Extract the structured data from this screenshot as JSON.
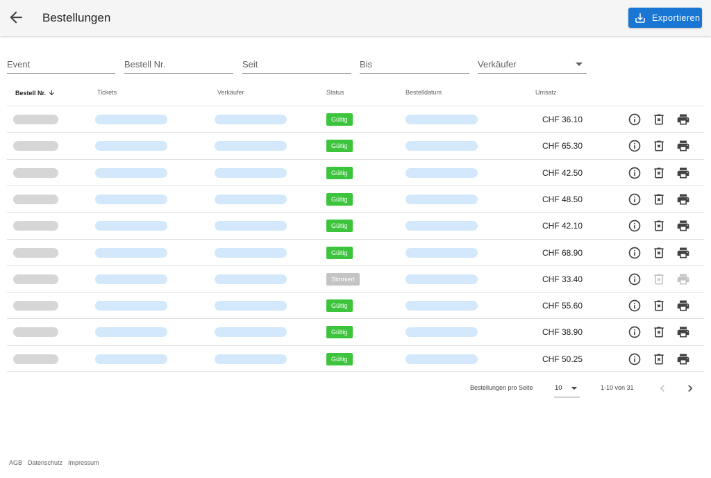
{
  "header": {
    "title": "Bestellungen",
    "export_label": "Exportieren"
  },
  "filters": [
    {
      "placeholder": "Event"
    },
    {
      "placeholder": "Bestell Nr."
    },
    {
      "placeholder": "Seit"
    },
    {
      "placeholder": "Bis"
    },
    {
      "placeholder": "Verkäufer",
      "dropdown": true
    }
  ],
  "table": {
    "columns": [
      "Bestell Nr.",
      "Tickets",
      "Verkäufer",
      "Status",
      "Bestelldatum",
      "Umsatz"
    ],
    "sorted_column": "Bestell Nr.",
    "rows": [
      {
        "status": "Gültig",
        "amount": "CHF 36.10",
        "actions_enabled": true
      },
      {
        "status": "Gültig",
        "amount": "CHF 65.30",
        "actions_enabled": true
      },
      {
        "status": "Gültig",
        "amount": "CHF 42.50",
        "actions_enabled": true
      },
      {
        "status": "Gültig",
        "amount": "CHF 48.50",
        "actions_enabled": true
      },
      {
        "status": "Gültig",
        "amount": "CHF 42.10",
        "actions_enabled": true
      },
      {
        "status": "Gültig",
        "amount": "CHF 68.90",
        "actions_enabled": true
      },
      {
        "status": "Storniert",
        "amount": "CHF 33.40",
        "actions_enabled": false
      },
      {
        "status": "Gültig",
        "amount": "CHF 55.60",
        "actions_enabled": true
      },
      {
        "status": "Gültig",
        "amount": "CHF 38.90",
        "actions_enabled": true
      },
      {
        "status": "Gültig",
        "amount": "CHF 50.25",
        "actions_enabled": true
      }
    ],
    "row_actions": [
      "info-icon",
      "delete-icon",
      "print-icon"
    ]
  },
  "pagination": {
    "rows_per_page_label": "Bestellungen pro Seite",
    "rows_per_page_value": "10",
    "range_label": "1-10 von 31"
  },
  "footer": {
    "links": [
      "AGB",
      "Datenschutz",
      "Impressum"
    ]
  },
  "colors": {
    "primary": "#1976d2",
    "status_valid": "#3cc43c",
    "status_cancelled": "#c4c4c4",
    "placeholder_gray": "#d6d6d6",
    "placeholder_blue": "#d3e9fb"
  }
}
